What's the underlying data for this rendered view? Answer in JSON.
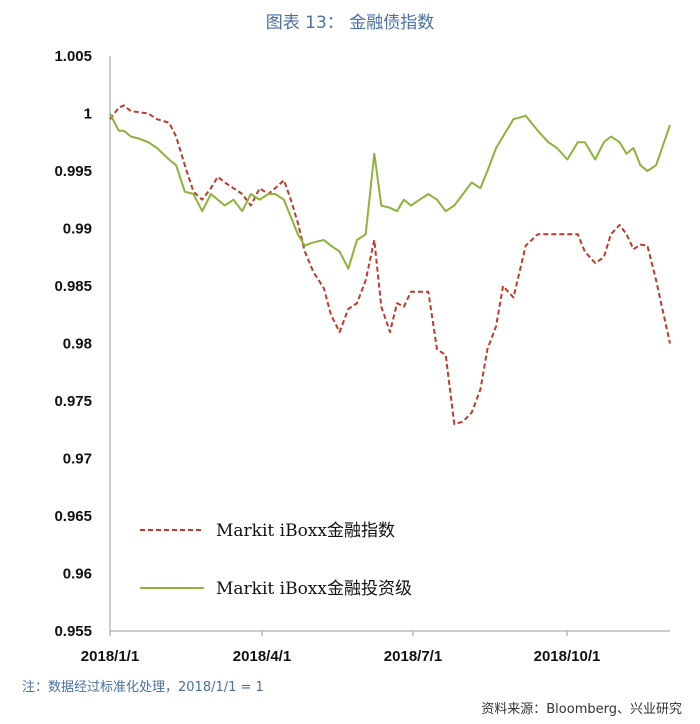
{
  "chart_data": {
    "type": "line",
    "title": "图表 13： 金融债指数",
    "xlabel": "",
    "ylabel": "",
    "ylim": [
      0.955,
      1.005
    ],
    "yticks": [
      "1.005",
      "1",
      "0.995",
      "0.99",
      "0.985",
      "0.98",
      "0.975",
      "0.97",
      "0.965",
      "0.96",
      "0.955"
    ],
    "xticks": [
      "2018/1/1",
      "2018/4/1",
      "2018/7/1",
      "2018/10/1"
    ],
    "x_start": "2017-12-29",
    "x_end": "2018-11-16",
    "grid": false,
    "legend_position": "lower-left",
    "series": [
      {
        "name": "Markit iBoxx金融指数",
        "color": "#c0392b",
        "style": "dashed",
        "x": [
          "2017-12-29",
          "2018-01-03",
          "2018-01-06",
          "2018-01-10",
          "2018-01-15",
          "2018-01-20",
          "2018-01-25",
          "2018-02-01",
          "2018-02-05",
          "2018-02-10",
          "2018-02-15",
          "2018-02-20",
          "2018-02-25",
          "2018-03-01",
          "2018-03-05",
          "2018-03-10",
          "2018-03-15",
          "2018-03-20",
          "2018-03-25",
          "2018-03-30",
          "2018-04-03",
          "2018-04-08",
          "2018-04-12",
          "2018-04-16",
          "2018-04-20",
          "2018-04-25",
          "2018-05-01",
          "2018-05-05",
          "2018-05-10",
          "2018-05-15",
          "2018-05-20",
          "2018-05-25",
          "2018-05-30",
          "2018-06-03",
          "2018-06-08",
          "2018-06-12",
          "2018-06-16",
          "2018-06-20",
          "2018-06-25",
          "2018-06-30",
          "2018-07-05",
          "2018-07-10",
          "2018-07-15",
          "2018-07-20",
          "2018-07-25",
          "2018-07-30",
          "2018-08-03",
          "2018-08-08",
          "2018-08-12",
          "2018-08-18",
          "2018-08-25",
          "2018-09-01",
          "2018-09-07",
          "2018-09-12",
          "2018-09-18",
          "2018-09-24",
          "2018-09-28",
          "2018-10-04",
          "2018-10-09",
          "2018-10-13",
          "2018-10-18",
          "2018-10-22",
          "2018-10-26",
          "2018-10-30",
          "2018-11-03",
          "2018-11-08",
          "2018-11-16"
        ],
        "values": [
          0.9995,
          1.0005,
          1.0007,
          1.0002,
          1.0001,
          1.0,
          0.9995,
          0.9992,
          0.998,
          0.9955,
          0.9932,
          0.9925,
          0.9935,
          0.9945,
          0.994,
          0.9935,
          0.993,
          0.992,
          0.9935,
          0.993,
          0.9935,
          0.9942,
          0.9925,
          0.9905,
          0.988,
          0.9862,
          0.9848,
          0.9825,
          0.981,
          0.983,
          0.9835,
          0.9855,
          0.989,
          0.9832,
          0.981,
          0.9835,
          0.9832,
          0.9845,
          0.9845,
          0.9845,
          0.9795,
          0.979,
          0.973,
          0.9732,
          0.974,
          0.976,
          0.9795,
          0.9815,
          0.985,
          0.984,
          0.9885,
          0.9895,
          0.9895,
          0.9895,
          0.9895,
          0.9895,
          0.988,
          0.987,
          0.9875,
          0.9895,
          0.9903,
          0.9895,
          0.9882,
          0.9886,
          0.9885,
          0.9855,
          0.98
        ]
      },
      {
        "name": "Markit iBoxx金融投资级",
        "color": "#8db33a",
        "style": "solid",
        "x": [
          "2017-12-29",
          "2018-01-03",
          "2018-01-06",
          "2018-01-10",
          "2018-01-15",
          "2018-01-20",
          "2018-01-25",
          "2018-02-01",
          "2018-02-05",
          "2018-02-10",
          "2018-02-15",
          "2018-02-20",
          "2018-02-25",
          "2018-03-01",
          "2018-03-05",
          "2018-03-10",
          "2018-03-15",
          "2018-03-20",
          "2018-03-25",
          "2018-03-30",
          "2018-04-03",
          "2018-04-08",
          "2018-04-12",
          "2018-04-16",
          "2018-04-20",
          "2018-04-25",
          "2018-05-01",
          "2018-05-05",
          "2018-05-10",
          "2018-05-15",
          "2018-05-20",
          "2018-05-25",
          "2018-05-30",
          "2018-06-03",
          "2018-06-08",
          "2018-06-12",
          "2018-06-16",
          "2018-06-20",
          "2018-06-25",
          "2018-06-30",
          "2018-07-05",
          "2018-07-10",
          "2018-07-15",
          "2018-07-20",
          "2018-07-25",
          "2018-07-30",
          "2018-08-03",
          "2018-08-08",
          "2018-08-12",
          "2018-08-18",
          "2018-08-25",
          "2018-09-01",
          "2018-09-07",
          "2018-09-12",
          "2018-09-18",
          "2018-09-24",
          "2018-09-28",
          "2018-10-04",
          "2018-10-09",
          "2018-10-13",
          "2018-10-18",
          "2018-10-22",
          "2018-10-26",
          "2018-10-30",
          "2018-11-03",
          "2018-11-08",
          "2018-11-16"
        ],
        "values": [
          1.0,
          0.9985,
          0.9985,
          0.998,
          0.9978,
          0.9975,
          0.997,
          0.996,
          0.9955,
          0.9932,
          0.993,
          0.9915,
          0.993,
          0.9925,
          0.992,
          0.9925,
          0.9915,
          0.993,
          0.9925,
          0.993,
          0.993,
          0.9925,
          0.991,
          0.9895,
          0.9885,
          0.9888,
          0.989,
          0.9885,
          0.988,
          0.9865,
          0.989,
          0.9895,
          0.9965,
          0.992,
          0.9918,
          0.9915,
          0.9925,
          0.992,
          0.9925,
          0.993,
          0.9925,
          0.9915,
          0.992,
          0.993,
          0.994,
          0.9935,
          0.995,
          0.997,
          0.998,
          0.9995,
          0.9998,
          0.9985,
          0.9975,
          0.997,
          0.996,
          0.9975,
          0.9975,
          0.996,
          0.9975,
          0.998,
          0.9975,
          0.9965,
          0.997,
          0.9955,
          0.995,
          0.9955,
          0.999
        ]
      }
    ]
  },
  "note": "注：数据经过标准化处理，2018/1/1 = 1",
  "source": "资料来源：Bloomberg、兴业研究"
}
